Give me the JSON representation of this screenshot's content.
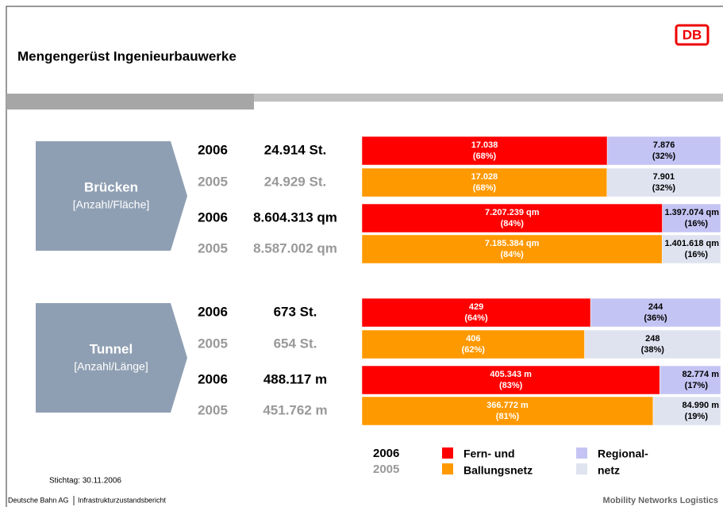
{
  "header": {
    "title": "Mengengerüst Ingenieurbauwerke",
    "logo": "DB"
  },
  "colors": {
    "2006": [
      "#ff0000",
      "#c4c4f4"
    ],
    "2005": [
      "#ff9900",
      "#dfe3f0"
    ]
  },
  "groups": [
    {
      "name": "Brücken",
      "unit": "[Anzahl/Fläche]",
      "rows": [
        {
          "year": "2006",
          "total": "24.914 St.",
          "segments": [
            {
              "value": 17038,
              "label": "17.038",
              "share": "(68%)"
            },
            {
              "value": 7876,
              "label": "7.876",
              "share": "(32%)"
            }
          ]
        },
        {
          "year": "2005",
          "total": "24.929 St.",
          "segments": [
            {
              "value": 17028,
              "label": "17.028",
              "share": "(68%)"
            },
            {
              "value": 7901,
              "label": "7.901",
              "share": "(32%)"
            }
          ]
        },
        {
          "year": "2006",
          "total": "8.604.313 qm",
          "segments": [
            {
              "value": 7207239,
              "label": "7.207.239 qm",
              "share": "(84%)"
            },
            {
              "value": 1397074,
              "label": "1.397.074 qm",
              "share": "(16%)"
            }
          ]
        },
        {
          "year": "2005",
          "total": "8.587.002 qm",
          "segments": [
            {
              "value": 7185384,
              "label": "7.185.384 qm",
              "share": "(84%)"
            },
            {
              "value": 1401618,
              "label": "1.401.618 qm",
              "share": "(16%)"
            }
          ]
        }
      ]
    },
    {
      "name": "Tunnel",
      "unit": "[Anzahl/Länge]",
      "rows": [
        {
          "year": "2006",
          "total": "673 St.",
          "segments": [
            {
              "value": 429,
              "label": "429",
              "share": "(64%)"
            },
            {
              "value": 244,
              "label": "244",
              "share": "(36%)"
            }
          ]
        },
        {
          "year": "2005",
          "total": "654 St.",
          "segments": [
            {
              "value": 406,
              "label": "406",
              "share": "(62%)"
            },
            {
              "value": 248,
              "label": "248",
              "share": "(38%)"
            }
          ]
        },
        {
          "year": "2006",
          "total": "488.117 m",
          "segments": [
            {
              "value": 405343,
              "label": "405.343 m",
              "share": "(83%)"
            },
            {
              "value": 82774,
              "label": "82.774 m",
              "share": "(17%)"
            }
          ]
        },
        {
          "year": "2005",
          "total": "451.762 m",
          "segments": [
            {
              "value": 366772,
              "label": "366.772 m",
              "share": "(81%)"
            },
            {
              "value": 84990,
              "label": "84.990 m",
              "share": "(19%)"
            }
          ]
        }
      ]
    }
  ],
  "legend": {
    "years": [
      "2006",
      "2005"
    ],
    "series": [
      [
        "Fern- und",
        "Ballungsnetz"
      ],
      [
        "Regional-",
        "netz"
      ]
    ]
  },
  "footer": {
    "date": "Stichtag: 30.11.2006",
    "company": "Deutsche Bahn AG",
    "report": "Infrastrukturzustandsbericht",
    "brand": "Mobility Networks Logistics"
  }
}
